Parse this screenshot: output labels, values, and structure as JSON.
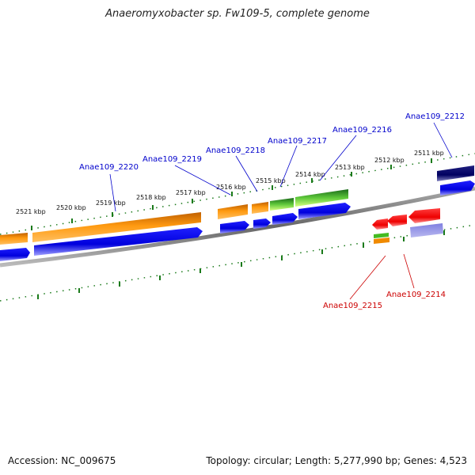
{
  "title": "Anaeromyxobacter sp. Fw109-5, complete genome",
  "footer": {
    "accession": "Accession: NC_009675",
    "summary": "Topology: circular; Length: 5,277,990 bp; Genes: 4,523"
  },
  "kbp_ticks": [
    "2521 kbp",
    "2520 kbp",
    "2519 kbp",
    "2518 kbp",
    "2517 kbp",
    "2516 kbp",
    "2515 kbp",
    "2514 kbp",
    "2513 kbp",
    "2512 kbp",
    "2511 kbp"
  ],
  "gene_labels": {
    "g2220": "Anae109_2220",
    "g2219": "Anae109_2219",
    "g2218": "Anae109_2218",
    "g2217": "Anae109_2217",
    "g2216": "Anae109_2216",
    "g2212": "Anae109_2212",
    "g2215": "Anae109_2215",
    "g2214": "Anae109_2214"
  },
  "colors": {
    "forward_label": "#0000cc",
    "reverse_label": "#cc0000",
    "tick": "#1a7a1a",
    "backbone": "#888888",
    "cds_blue": "#0000ee",
    "gene_orange": "#f08a00",
    "gene_green": "#2e8b2e",
    "gene_red": "#ee0000",
    "gene_navy": "#000066",
    "gene_lavender": "#6a5acd"
  }
}
